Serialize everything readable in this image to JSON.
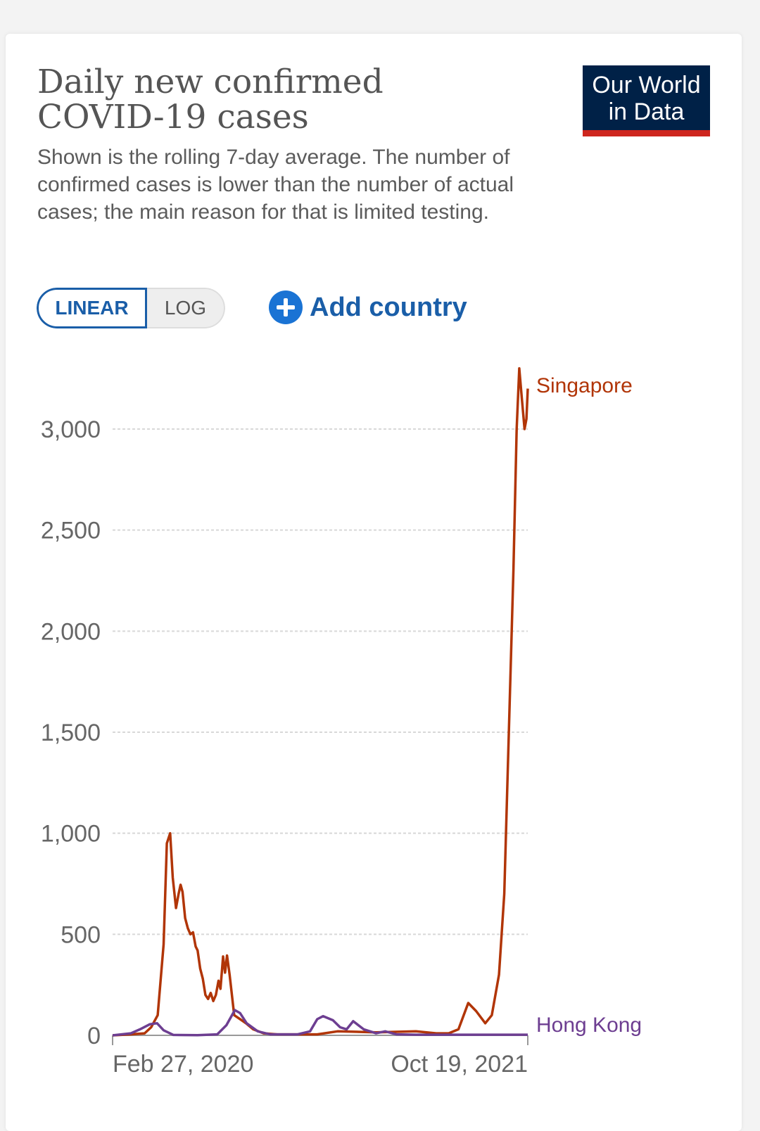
{
  "header": {
    "title_line1": "Daily new confirmed",
    "title_line2": "COVID-19 cases",
    "subtitle": "Shown is the rolling 7-day average. The number of confirmed cases is lower than the number of actual cases; the main reason for that is limited testing."
  },
  "logo": {
    "line1": "Our World",
    "line2": "in Data",
    "bg_color": "#002147",
    "accent_color": "#ce261e"
  },
  "controls": {
    "linear_label": "LINEAR",
    "log_label": "LOG",
    "active_scale": "linear",
    "add_country_label": "Add country",
    "add_icon": "plus-circle-icon"
  },
  "chart_data": {
    "type": "line",
    "title": "Daily new confirmed COVID-19 cases",
    "xlabel": "",
    "ylabel": "",
    "x_start": "2020-01-23",
    "x_end": "2021-10-19",
    "x_tick_labels": [
      "Feb 27, 2020",
      "Oct 19, 2021"
    ],
    "ylim": [
      0,
      3000
    ],
    "y_ticks": [
      0,
      500,
      1000,
      1500,
      2000,
      2500,
      3000
    ],
    "y_tick_labels": [
      "0",
      "500",
      "1,000",
      "1,500",
      "2,000",
      "2,500",
      "3,000"
    ],
    "grid": true,
    "legend": "inline-right",
    "series": [
      {
        "name": "Singapore",
        "color": "#b13507",
        "points": [
          [
            "2020-01-23",
            0
          ],
          [
            "2020-02-20",
            5
          ],
          [
            "2020-03-12",
            10
          ],
          [
            "2020-03-22",
            40
          ],
          [
            "2020-04-01",
            100
          ],
          [
            "2020-04-10",
            450
          ],
          [
            "2020-04-15",
            950
          ],
          [
            "2020-04-20",
            1000
          ],
          [
            "2020-04-24",
            780
          ],
          [
            "2020-04-29",
            630
          ],
          [
            "2020-05-03",
            700
          ],
          [
            "2020-05-06",
            745
          ],
          [
            "2020-05-09",
            710
          ],
          [
            "2020-05-13",
            580
          ],
          [
            "2020-05-17",
            530
          ],
          [
            "2020-05-21",
            500
          ],
          [
            "2020-05-25",
            510
          ],
          [
            "2020-05-29",
            440
          ],
          [
            "2020-06-01",
            420
          ],
          [
            "2020-06-05",
            330
          ],
          [
            "2020-06-09",
            280
          ],
          [
            "2020-06-13",
            200
          ],
          [
            "2020-06-17",
            180
          ],
          [
            "2020-06-21",
            210
          ],
          [
            "2020-06-25",
            170
          ],
          [
            "2020-06-29",
            200
          ],
          [
            "2020-07-03",
            270
          ],
          [
            "2020-07-06",
            230
          ],
          [
            "2020-07-10",
            390
          ],
          [
            "2020-07-13",
            310
          ],
          [
            "2020-07-16",
            395
          ],
          [
            "2020-07-20",
            300
          ],
          [
            "2020-07-27",
            100
          ],
          [
            "2020-08-05",
            80
          ],
          [
            "2020-08-14",
            60
          ],
          [
            "2020-08-25",
            30
          ],
          [
            "2020-09-10",
            10
          ],
          [
            "2020-10-01",
            5
          ],
          [
            "2020-12-01",
            5
          ],
          [
            "2021-01-01",
            20
          ],
          [
            "2021-03-01",
            15
          ],
          [
            "2021-05-01",
            20
          ],
          [
            "2021-06-01",
            10
          ],
          [
            "2021-06-20",
            10
          ],
          [
            "2021-07-05",
            30
          ],
          [
            "2021-07-20",
            160
          ],
          [
            "2021-08-01",
            120
          ],
          [
            "2021-08-15",
            60
          ],
          [
            "2021-08-25",
            100
          ],
          [
            "2021-09-05",
            300
          ],
          [
            "2021-09-13",
            700
          ],
          [
            "2021-09-20",
            1500
          ],
          [
            "2021-09-27",
            2300
          ],
          [
            "2021-10-02",
            3000
          ],
          [
            "2021-10-06",
            3300
          ],
          [
            "2021-10-10",
            3150
          ],
          [
            "2021-10-14",
            3000
          ],
          [
            "2021-10-17",
            3050
          ],
          [
            "2021-10-19",
            3200
          ]
        ]
      },
      {
        "name": "Hong Kong",
        "color": "#6d3e91",
        "points": [
          [
            "2020-01-23",
            0
          ],
          [
            "2020-02-20",
            10
          ],
          [
            "2020-03-05",
            30
          ],
          [
            "2020-03-20",
            55
          ],
          [
            "2020-03-31",
            60
          ],
          [
            "2020-04-10",
            25
          ],
          [
            "2020-04-25",
            2
          ],
          [
            "2020-06-01",
            1
          ],
          [
            "2020-07-01",
            5
          ],
          [
            "2020-07-15",
            50
          ],
          [
            "2020-07-28",
            125
          ],
          [
            "2020-08-05",
            110
          ],
          [
            "2020-08-15",
            60
          ],
          [
            "2020-09-01",
            20
          ],
          [
            "2020-09-20",
            5
          ],
          [
            "2020-11-01",
            5
          ],
          [
            "2020-11-20",
            20
          ],
          [
            "2020-12-01",
            80
          ],
          [
            "2020-12-10",
            95
          ],
          [
            "2020-12-25",
            75
          ],
          [
            "2021-01-05",
            40
          ],
          [
            "2021-01-15",
            30
          ],
          [
            "2021-01-25",
            70
          ],
          [
            "2021-02-10",
            30
          ],
          [
            "2021-03-01",
            10
          ],
          [
            "2021-03-15",
            20
          ],
          [
            "2021-04-01",
            5
          ],
          [
            "2021-05-01",
            3
          ],
          [
            "2021-07-01",
            3
          ],
          [
            "2021-10-19",
            3
          ]
        ]
      }
    ]
  }
}
